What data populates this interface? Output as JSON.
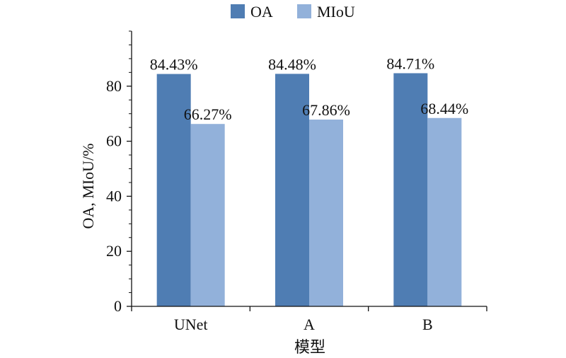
{
  "chart_data": {
    "type": "bar",
    "categories": [
      "UNet",
      "A",
      "B"
    ],
    "series": [
      {
        "name": "OA",
        "values": [
          84.43,
          84.48,
          84.71
        ],
        "color": "#4F7DB3"
      },
      {
        "name": "MIoU",
        "values": [
          66.27,
          67.86,
          68.44
        ],
        "color": "#92B1DA"
      }
    ],
    "data_labels": [
      [
        "84.43%",
        "84.48%",
        "84.71%"
      ],
      [
        "66.27%",
        "67.86%",
        "68.44%"
      ]
    ],
    "title": "",
    "xlabel": "模型",
    "ylabel": "OA, MIoU/%",
    "ylim": [
      0,
      100
    ],
    "yticks": [
      0,
      20,
      40,
      60,
      80
    ],
    "grid": false,
    "legend_position": "top"
  }
}
